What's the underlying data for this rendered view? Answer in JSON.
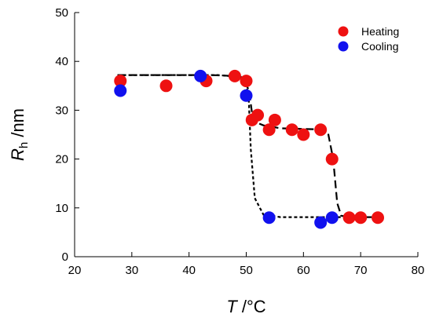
{
  "chart_data": {
    "type": "scatter",
    "title": "",
    "xlabel": {
      "symbol": "T",
      "unit": " /°C"
    },
    "ylabel": {
      "symbol": "R",
      "subscript": "h",
      "unit": " /nm"
    },
    "xlim": [
      20,
      80
    ],
    "ylim": [
      0,
      50
    ],
    "xticks": [
      "20",
      "30",
      "40",
      "50",
      "60",
      "70",
      "80"
    ],
    "yticks": [
      "0",
      "10",
      "20",
      "30",
      "40",
      "50"
    ],
    "grid": false,
    "legend_position": "top-right",
    "series": [
      {
        "name": "Heating",
        "color": "#ee1111",
        "points": [
          [
            28,
            36
          ],
          [
            36,
            35
          ],
          [
            43,
            36
          ],
          [
            48,
            37
          ],
          [
            50,
            36
          ],
          [
            51,
            28
          ],
          [
            52,
            29
          ],
          [
            54,
            26
          ],
          [
            55,
            28
          ],
          [
            58,
            26
          ],
          [
            60,
            25
          ],
          [
            63,
            26
          ],
          [
            65,
            20
          ],
          [
            68,
            8
          ],
          [
            70,
            8
          ],
          [
            73,
            8
          ]
        ]
      },
      {
        "name": "Cooling",
        "color": "#1111ee",
        "points": [
          [
            28,
            34
          ],
          [
            42,
            37
          ],
          [
            50,
            33
          ],
          [
            54,
            8
          ],
          [
            63,
            7
          ],
          [
            65,
            8
          ]
        ]
      }
    ],
    "fit_curves": [
      {
        "style": "dash",
        "points": [
          [
            27.5,
            37.2
          ],
          [
            44,
            37.2
          ],
          [
            48,
            37.0
          ],
          [
            49.5,
            36.4
          ],
          [
            50.5,
            34
          ],
          [
            51.2,
            27.8
          ],
          [
            53,
            26.9
          ],
          [
            56,
            26.3
          ],
          [
            62,
            26.1
          ],
          [
            64.3,
            25.3
          ],
          [
            65.2,
            20
          ],
          [
            65.9,
            11
          ],
          [
            66.6,
            8.4
          ],
          [
            68,
            8.1
          ],
          [
            73.5,
            8.1
          ]
        ]
      },
      {
        "style": "dot",
        "points": [
          [
            27.5,
            37.2
          ],
          [
            45,
            37.2
          ],
          [
            49.3,
            36.8
          ],
          [
            50.4,
            33.5
          ],
          [
            50.8,
            22
          ],
          [
            51.5,
            12
          ],
          [
            53,
            8.6
          ],
          [
            56,
            8.1
          ],
          [
            66.5,
            8.1
          ]
        ]
      }
    ]
  }
}
